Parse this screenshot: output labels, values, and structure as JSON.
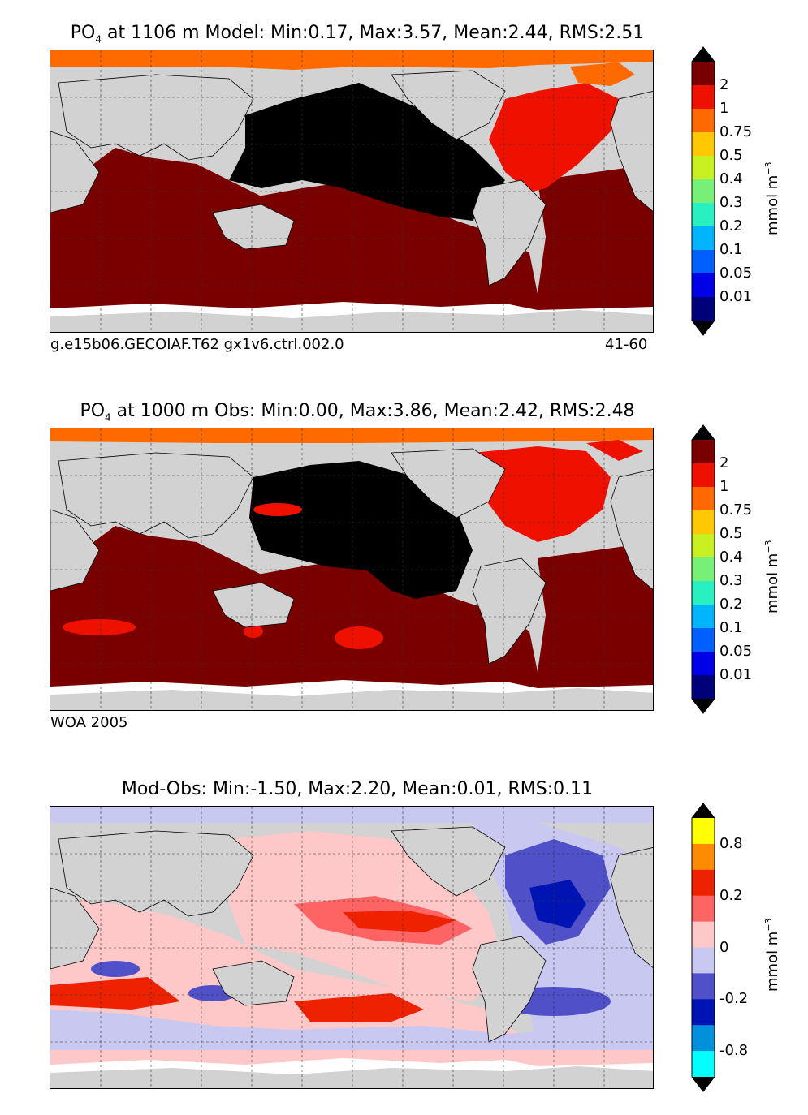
{
  "chart_data": [
    {
      "type": "heatmap",
      "title_prefix": "PO",
      "title_sub": "4",
      "title_rest": " at 1106 m Model: Min:0.17, Max:3.57, Mean:2.44, RMS:2.51",
      "caption_left": "g.e15b06.GECOIAF.T62 gx1v6.ctrl.002.0",
      "caption_right": "41-60",
      "stats": {
        "min": 0.17,
        "max": 3.57,
        "mean": 2.44,
        "rms": 2.51
      },
      "depth_m": 1106,
      "colorbar": {
        "unit_base": "mmol m",
        "unit_exp": "−3",
        "tick_labels": [
          "2",
          "1",
          "0.75",
          "0.5",
          "0.4",
          "0.3",
          "0.2",
          "0.1",
          "0.05",
          "0.01"
        ],
        "colors": [
          "#7a0000",
          "#ee1100",
          "#ff6a00",
          "#ffc800",
          "#c8f020",
          "#78f078",
          "#28f0c0",
          "#00b4ff",
          "#0060ff",
          "#0000e6",
          "#00007a"
        ]
      }
    },
    {
      "type": "heatmap",
      "title_prefix": "PO",
      "title_sub": "4",
      "title_rest": " at 1000 m Obs: Min:0.00, Max:3.86, Mean:2.42, RMS:2.48",
      "caption_left": "WOA 2005",
      "caption_right": "",
      "stats": {
        "min": 0.0,
        "max": 3.86,
        "mean": 2.42,
        "rms": 2.48
      },
      "depth_m": 1000,
      "colorbar": {
        "unit_base": "mmol m",
        "unit_exp": "−3",
        "tick_labels": [
          "2",
          "1",
          "0.75",
          "0.5",
          "0.4",
          "0.3",
          "0.2",
          "0.1",
          "0.05",
          "0.01"
        ],
        "colors": [
          "#7a0000",
          "#ee1100",
          "#ff6a00",
          "#ffc800",
          "#c8f020",
          "#78f078",
          "#28f0c0",
          "#00b4ff",
          "#0060ff",
          "#0000e6",
          "#00007a"
        ]
      }
    },
    {
      "type": "heatmap",
      "title_prefix": "",
      "title_sub": "",
      "title_rest": "Mod-Obs: Min:-1.50, Max:2.20, Mean:0.01, RMS:0.11",
      "caption_left": "",
      "caption_right": "",
      "stats": {
        "min": -1.5,
        "max": 2.2,
        "mean": 0.01,
        "rms": 0.11
      },
      "colorbar": {
        "unit_base": "mmol m",
        "unit_exp": "−3",
        "tick_labels": [
          "0.8",
          "0.2",
          "0",
          "-0.2",
          "-0.8"
        ],
        "colors": [
          "#ffff00",
          "#ff8c00",
          "#ee2200",
          "#ff6464",
          "#ffc8c8",
          "#c8c8f0",
          "#5050c8",
          "#0014b4",
          "#0090dc",
          "#00ffff"
        ]
      }
    }
  ],
  "colors": {
    "land": "#d2d2d2",
    "no_data": "#ffffff",
    "black_region": "#000000"
  }
}
